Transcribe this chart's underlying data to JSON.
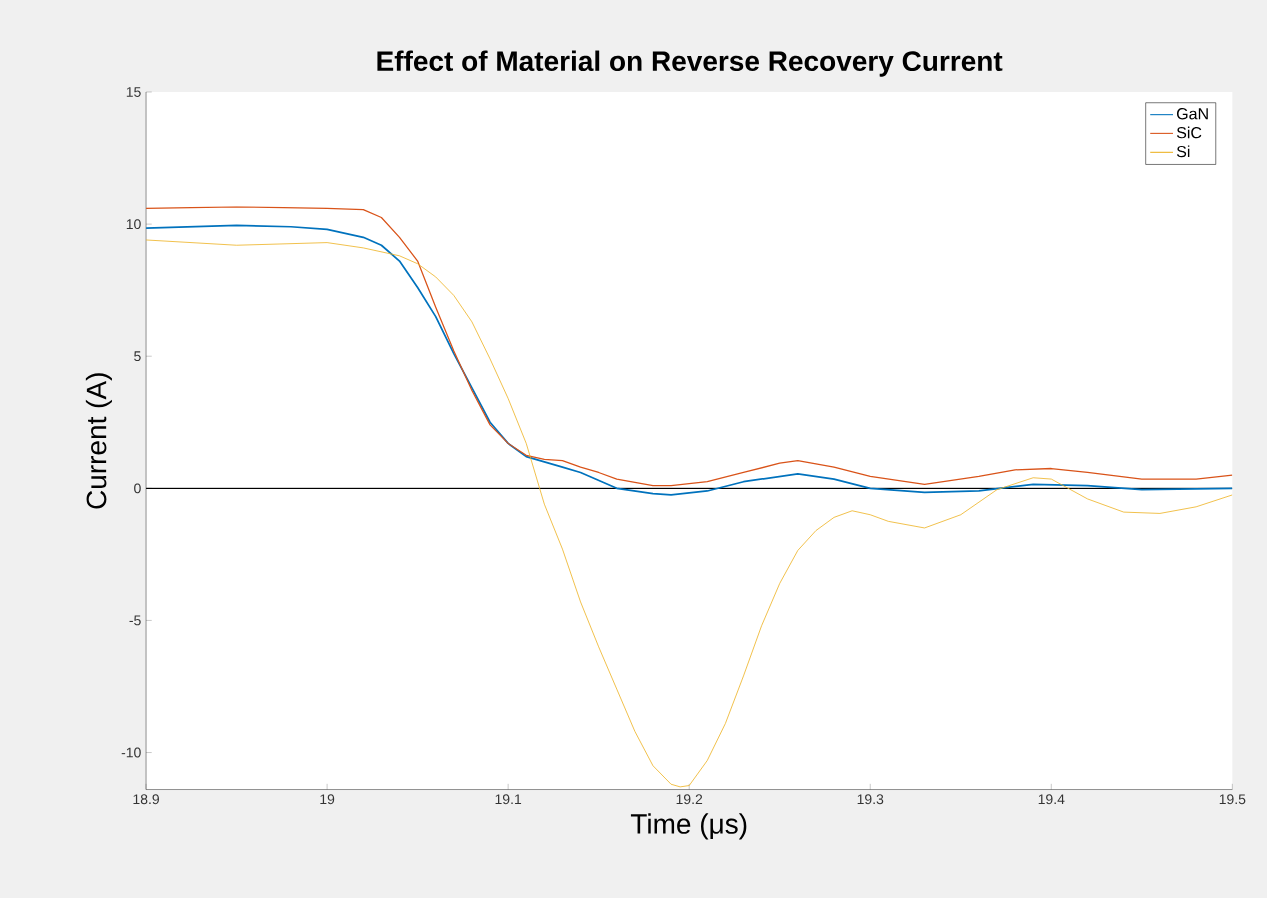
{
  "chart_data": {
    "type": "line",
    "title": "Effect of Material on Reverse Recovery Current",
    "xlabel": "Time (μs)",
    "ylabel": "Current (A)",
    "xlim": [
      18.9,
      19.5
    ],
    "xticks": [
      18.9,
      19,
      19.1,
      19.2,
      19.3,
      19.4,
      19.5
    ],
    "ylim": [
      -11.4,
      15
    ],
    "yticks": [
      -10,
      -5,
      0,
      5,
      10,
      15
    ],
    "legend": "top right",
    "grid": false,
    "ref_lines": [
      {
        "axis": "y",
        "value": 0,
        "color": "#000000"
      }
    ],
    "series": [
      {
        "name": "GaN",
        "color": "#0072bd",
        "x": [
          18.9,
          18.95,
          18.98,
          19.0,
          19.02,
          19.03,
          19.04,
          19.05,
          19.06,
          19.07,
          19.08,
          19.09,
          19.1,
          19.11,
          19.12,
          19.13,
          19.14,
          19.15,
          19.16,
          19.18,
          19.19,
          19.21,
          19.23,
          19.26,
          19.28,
          19.3,
          19.33,
          19.36,
          19.39,
          19.42,
          19.45,
          19.5
        ],
        "values": [
          9.85,
          9.95,
          9.9,
          9.8,
          9.5,
          9.2,
          8.6,
          7.6,
          6.5,
          5.1,
          3.8,
          2.5,
          1.7,
          1.2,
          1.0,
          0.8,
          0.6,
          0.3,
          0.0,
          -0.2,
          -0.25,
          -0.1,
          0.25,
          0.55,
          0.35,
          0.0,
          -0.15,
          -0.1,
          0.15,
          0.1,
          -0.05,
          0.0
        ]
      },
      {
        "name": "SiC",
        "color": "#d95319",
        "x": [
          18.9,
          18.95,
          19.0,
          19.02,
          19.03,
          19.04,
          19.05,
          19.06,
          19.07,
          19.08,
          19.09,
          19.1,
          19.11,
          19.12,
          19.13,
          19.14,
          19.15,
          19.16,
          19.18,
          19.19,
          19.21,
          19.23,
          19.25,
          19.26,
          19.28,
          19.3,
          19.33,
          19.36,
          19.38,
          19.4,
          19.42,
          19.45,
          19.48,
          19.5
        ],
        "values": [
          10.6,
          10.65,
          10.6,
          10.55,
          10.25,
          9.5,
          8.6,
          6.85,
          5.2,
          3.7,
          2.4,
          1.7,
          1.25,
          1.1,
          1.05,
          0.8,
          0.6,
          0.35,
          0.1,
          0.1,
          0.25,
          0.6,
          0.95,
          1.05,
          0.8,
          0.45,
          0.15,
          0.45,
          0.7,
          0.75,
          0.6,
          0.35,
          0.35,
          0.5
        ]
      },
      {
        "name": "Si",
        "color": "#edb120",
        "x": [
          18.9,
          18.95,
          19.0,
          19.02,
          19.04,
          19.05,
          19.06,
          19.07,
          19.08,
          19.09,
          19.1,
          19.11,
          19.12,
          19.13,
          19.14,
          19.15,
          19.16,
          19.17,
          19.18,
          19.19,
          19.195,
          19.2,
          19.21,
          19.22,
          19.23,
          19.24,
          19.25,
          19.26,
          19.27,
          19.28,
          19.29,
          19.3,
          19.31,
          19.33,
          19.35,
          19.37,
          19.39,
          19.4,
          19.42,
          19.44,
          19.46,
          19.48,
          19.5
        ],
        "values": [
          9.4,
          9.2,
          9.3,
          9.1,
          8.8,
          8.5,
          8.0,
          7.3,
          6.3,
          4.9,
          3.4,
          1.7,
          -0.6,
          -2.3,
          -4.3,
          -6.0,
          -7.6,
          -9.2,
          -10.5,
          -11.2,
          -11.3,
          -11.25,
          -10.3,
          -8.9,
          -7.1,
          -5.2,
          -3.6,
          -2.35,
          -1.6,
          -1.1,
          -0.85,
          -1.0,
          -1.25,
          -1.5,
          -1.0,
          -0.05,
          0.4,
          0.35,
          -0.4,
          -0.9,
          -0.95,
          -0.7,
          -0.25
        ]
      }
    ]
  }
}
